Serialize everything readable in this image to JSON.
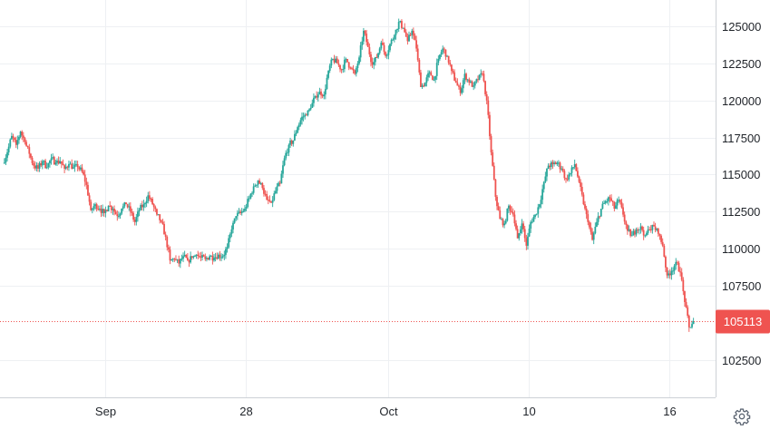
{
  "chart_data": {
    "type": "candlestick",
    "title": "",
    "xlabel": "",
    "ylabel": "",
    "x_tick_labels": [
      "Sep",
      "28",
      "Oct",
      "10",
      "16"
    ],
    "y_tick_labels": [
      "125000",
      "122500",
      "120000",
      "117500",
      "115000",
      "112500",
      "110000",
      "107500",
      "102500"
    ],
    "ylim": [
      101000,
      126500
    ],
    "grid": true,
    "last_price": "105113",
    "colors": {
      "up": "#26a69a",
      "down": "#ef5350",
      "grid": "#eef0f3",
      "axis_line": "#cdd1d6",
      "price_tag": "#ef5350"
    },
    "close_path": [
      [
        0,
        115800
      ],
      [
        1,
        116500
      ],
      [
        2,
        117600
      ],
      [
        3,
        117000
      ],
      [
        4,
        117900
      ],
      [
        5,
        117200
      ],
      [
        6,
        116400
      ],
      [
        7,
        115600
      ],
      [
        8,
        115400
      ],
      [
        9,
        115900
      ],
      [
        10,
        115500
      ],
      [
        11,
        116100
      ],
      [
        12,
        115800
      ],
      [
        13,
        115900
      ],
      [
        14,
        115400
      ],
      [
        15,
        115700
      ],
      [
        16,
        115500
      ],
      [
        17,
        115500
      ],
      [
        18,
        115200
      ],
      [
        19,
        114300
      ],
      [
        20,
        112600
      ],
      [
        21,
        113000
      ],
      [
        22,
        112700
      ],
      [
        23,
        112400
      ],
      [
        24,
        112900
      ],
      [
        25,
        112700
      ],
      [
        26,
        112200
      ],
      [
        27,
        112700
      ],
      [
        28,
        113000
      ],
      [
        29,
        112500
      ],
      [
        30,
        111800
      ],
      [
        31,
        112600
      ],
      [
        32,
        113000
      ],
      [
        33,
        113600
      ],
      [
        34,
        113000
      ],
      [
        35,
        112300
      ],
      [
        36,
        111800
      ],
      [
        37,
        110800
      ],
      [
        38,
        109200
      ],
      [
        39,
        109300
      ],
      [
        40,
        109000
      ],
      [
        41,
        109500
      ],
      [
        42,
        109200
      ],
      [
        43,
        109400
      ],
      [
        44,
        109600
      ],
      [
        45,
        109400
      ],
      [
        46,
        109300
      ],
      [
        47,
        109500
      ],
      [
        48,
        109400
      ],
      [
        49,
        109600
      ],
      [
        50,
        109500
      ],
      [
        51,
        110100
      ],
      [
        52,
        111300
      ],
      [
        53,
        112200
      ],
      [
        54,
        112400
      ],
      [
        55,
        112700
      ],
      [
        56,
        113400
      ],
      [
        57,
        114200
      ],
      [
        58,
        114600
      ],
      [
        59,
        114100
      ],
      [
        60,
        113300
      ],
      [
        61,
        113100
      ],
      [
        62,
        113900
      ],
      [
        63,
        114400
      ],
      [
        64,
        116100
      ],
      [
        65,
        117000
      ],
      [
        66,
        117300
      ],
      [
        67,
        118200
      ],
      [
        68,
        118900
      ],
      [
        69,
        119000
      ],
      [
        70,
        119500
      ],
      [
        71,
        120300
      ],
      [
        72,
        120600
      ],
      [
        73,
        120400
      ],
      [
        74,
        122000
      ],
      [
        75,
        122800
      ],
      [
        76,
        122500
      ],
      [
        77,
        122100
      ],
      [
        78,
        122800
      ],
      [
        79,
        122200
      ],
      [
        80,
        121800
      ],
      [
        81,
        122900
      ],
      [
        82,
        124700
      ],
      [
        83,
        123600
      ],
      [
        84,
        122400
      ],
      [
        85,
        122900
      ],
      [
        86,
        123900
      ],
      [
        87,
        123000
      ],
      [
        88,
        123800
      ],
      [
        89,
        124400
      ],
      [
        90,
        125300
      ],
      [
        91,
        124900
      ],
      [
        92,
        124000
      ],
      [
        93,
        124700
      ],
      [
        94,
        123500
      ],
      [
        95,
        120900
      ],
      [
        96,
        121200
      ],
      [
        97,
        121900
      ],
      [
        98,
        121400
      ],
      [
        99,
        122800
      ],
      [
        100,
        123500
      ],
      [
        101,
        123000
      ],
      [
        102,
        122000
      ],
      [
        103,
        121200
      ],
      [
        104,
        120500
      ],
      [
        105,
        121800
      ],
      [
        106,
        121200
      ],
      [
        107,
        121000
      ],
      [
        108,
        121400
      ],
      [
        109,
        121800
      ],
      [
        110,
        120000
      ],
      [
        111,
        116500
      ],
      [
        112,
        113500
      ],
      [
        113,
        112000
      ],
      [
        114,
        111700
      ],
      [
        115,
        112900
      ],
      [
        116,
        112300
      ],
      [
        117,
        110700
      ],
      [
        118,
        111700
      ],
      [
        119,
        110200
      ],
      [
        120,
        111800
      ],
      [
        121,
        112300
      ],
      [
        122,
        113000
      ],
      [
        123,
        114500
      ],
      [
        124,
        115600
      ],
      [
        125,
        115700
      ],
      [
        126,
        115800
      ],
      [
        127,
        115400
      ],
      [
        128,
        114700
      ],
      [
        129,
        115100
      ],
      [
        130,
        115700
      ],
      [
        131,
        114500
      ],
      [
        132,
        113000
      ],
      [
        133,
        111800
      ],
      [
        134,
        110600
      ],
      [
        135,
        111800
      ],
      [
        136,
        112700
      ],
      [
        137,
        113200
      ],
      [
        138,
        113400
      ],
      [
        139,
        112700
      ],
      [
        140,
        113300
      ],
      [
        141,
        112300
      ],
      [
        142,
        111200
      ],
      [
        143,
        110900
      ],
      [
        144,
        111300
      ],
      [
        145,
        111500
      ],
      [
        146,
        110900
      ],
      [
        147,
        111300
      ],
      [
        148,
        111500
      ],
      [
        149,
        111000
      ],
      [
        150,
        110200
      ],
      [
        151,
        108200
      ],
      [
        152,
        108500
      ],
      [
        153,
        109100
      ],
      [
        154,
        108400
      ],
      [
        155,
        106400
      ],
      [
        156,
        104700
      ],
      [
        157,
        105113
      ]
    ]
  }
}
